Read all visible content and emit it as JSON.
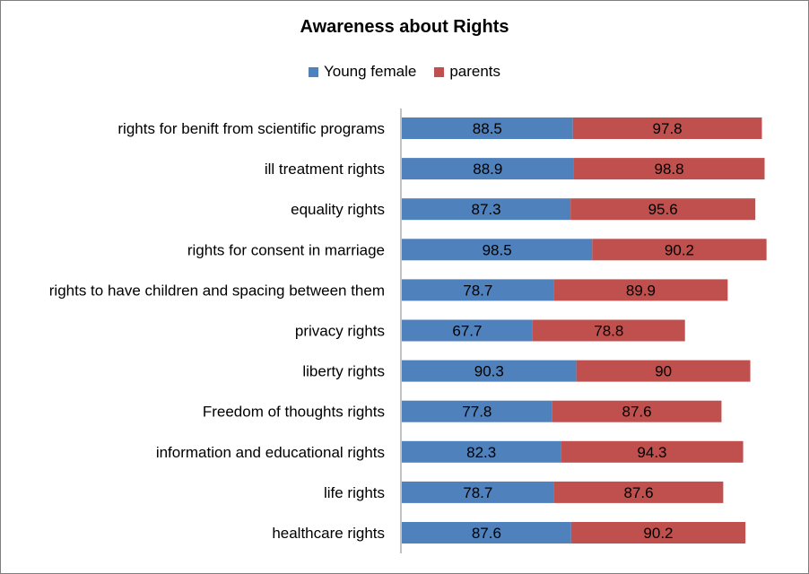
{
  "chart_data": {
    "type": "bar",
    "orientation": "horizontal",
    "stacked": true,
    "title": "Awareness about Rights",
    "legend_position": "top",
    "grid": false,
    "xlim": [
      0,
      200
    ],
    "categories": [
      "rights for benift from scientific programs",
      "ill treatment rights",
      "equality rights",
      "rights for consent in marriage",
      "rights to have children and spacing between them",
      "privacy rights",
      "liberty rights",
      "Freedom of thoughts rights",
      "information and educational rights",
      "life rights",
      "healthcare rights"
    ],
    "series": [
      {
        "name": "Young female",
        "color": "#4f81bd",
        "values": [
          88.5,
          88.9,
          87.3,
          98.5,
          78.7,
          67.7,
          90.3,
          77.8,
          82.3,
          78.7,
          87.6
        ],
        "labels": [
          "88.5",
          "88.9",
          "87.3",
          "98.5",
          "78.7",
          "67.7",
          "90.3",
          "77.8",
          "82.3",
          "78.7",
          "87.6"
        ]
      },
      {
        "name": "parents",
        "color": "#c0504d",
        "values": [
          97.8,
          98.8,
          95.6,
          90.2,
          89.9,
          78.8,
          90,
          87.6,
          94.3,
          87.6,
          90.2
        ],
        "labels": [
          "97.8",
          "98.8",
          "95.6",
          "90.2",
          "89.9",
          "78.8",
          "90",
          "87.6",
          "94.3",
          "87.6",
          "90.2"
        ]
      }
    ]
  }
}
